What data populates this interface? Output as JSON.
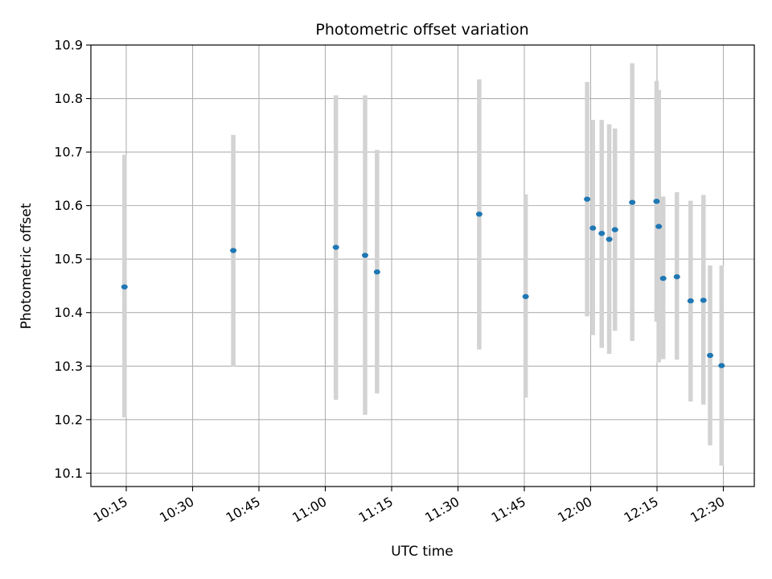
{
  "chart_data": {
    "type": "scatter",
    "title": "Photometric offset variation",
    "xlabel": "UTC time",
    "ylabel": "Photometric offset",
    "x_ticks": [
      "10:15",
      "10:30",
      "10:45",
      "11:00",
      "11:15",
      "11:30",
      "11:45",
      "12:00",
      "12:15",
      "12:30"
    ],
    "xlim": [
      "10:07",
      "12:37"
    ],
    "y_ticks": [
      "10.1",
      "10.2",
      "10.3",
      "10.4",
      "10.5",
      "10.6",
      "10.7",
      "10.8",
      "10.9"
    ],
    "ylim": [
      10.075,
      10.9
    ],
    "grid": true,
    "colors": {
      "point": "#1f77b4",
      "errorbar": "#d3d3d3",
      "grid": "#b0b0b0"
    },
    "points": [
      {
        "t": "10:14:36",
        "y": 10.448,
        "lo": 10.204,
        "hi": 10.695
      },
      {
        "t": "10:39:12",
        "y": 10.516,
        "lo": 10.299,
        "hi": 10.732
      },
      {
        "t": "11:02:24",
        "y": 10.522,
        "lo": 10.237,
        "hi": 10.806
      },
      {
        "t": "11:09:00",
        "y": 10.507,
        "lo": 10.209,
        "hi": 10.806
      },
      {
        "t": "11:11:42",
        "y": 10.476,
        "lo": 10.249,
        "hi": 10.704
      },
      {
        "t": "11:34:48",
        "y": 10.584,
        "lo": 10.331,
        "hi": 10.836
      },
      {
        "t": "11:45:18",
        "y": 10.43,
        "lo": 10.241,
        "hi": 10.621
      },
      {
        "t": "11:59:12",
        "y": 10.612,
        "lo": 10.393,
        "hi": 10.831
      },
      {
        "t": "12:00:30",
        "y": 10.558,
        "lo": 10.358,
        "hi": 10.76
      },
      {
        "t": "12:02:30",
        "y": 10.548,
        "lo": 10.334,
        "hi": 10.76
      },
      {
        "t": "12:04:12",
        "y": 10.537,
        "lo": 10.323,
        "hi": 10.752
      },
      {
        "t": "12:05:30",
        "y": 10.555,
        "lo": 10.366,
        "hi": 10.744
      },
      {
        "t": "12:09:24",
        "y": 10.606,
        "lo": 10.347,
        "hi": 10.866
      },
      {
        "t": "12:14:54",
        "y": 10.608,
        "lo": 10.383,
        "hi": 10.833
      },
      {
        "t": "12:15:24",
        "y": 10.561,
        "lo": 10.307,
        "hi": 10.816
      },
      {
        "t": "12:16:24",
        "y": 10.464,
        "lo": 10.313,
        "hi": 10.617
      },
      {
        "t": "12:19:30",
        "y": 10.467,
        "lo": 10.312,
        "hi": 10.625
      },
      {
        "t": "12:22:36",
        "y": 10.422,
        "lo": 10.234,
        "hi": 10.609
      },
      {
        "t": "12:25:30",
        "y": 10.423,
        "lo": 10.228,
        "hi": 10.62
      },
      {
        "t": "12:27:00",
        "y": 10.32,
        "lo": 10.152,
        "hi": 10.488
      },
      {
        "t": "12:29:36",
        "y": 10.301,
        "lo": 10.114,
        "hi": 10.488
      }
    ]
  }
}
